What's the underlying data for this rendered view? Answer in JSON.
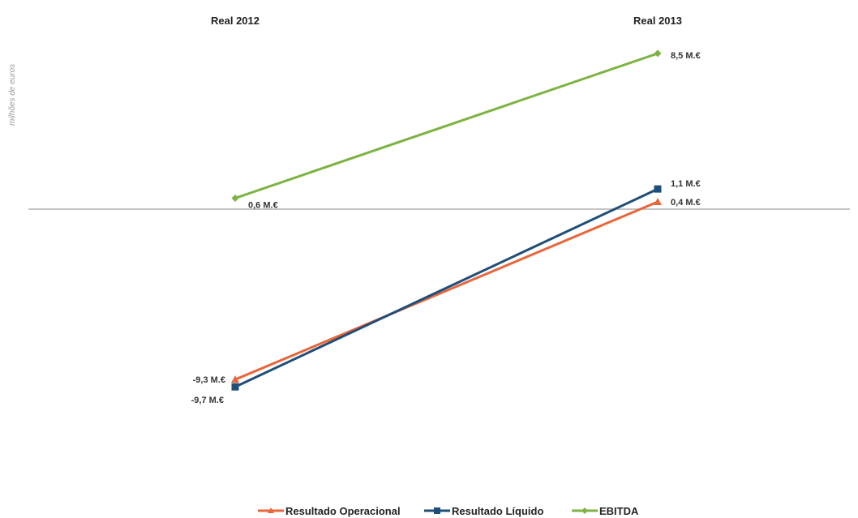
{
  "chart_data": {
    "type": "line",
    "categories": [
      "Real 2012",
      "Real 2013"
    ],
    "ylabel": "milhões de euros",
    "ylim": [
      -12,
      10
    ],
    "grid": false,
    "legend_position": "bottom",
    "series": [
      {
        "name": "Resultado Operacional",
        "color": "#e8663b",
        "marker": "triangle",
        "values": [
          -9.3,
          0.4
        ],
        "labels": [
          "-9,3 M.€",
          "0,4 M.€"
        ]
      },
      {
        "name": "Resultado Líquido",
        "color": "#1f4e79",
        "marker": "square",
        "values": [
          -9.7,
          1.1
        ],
        "labels": [
          "-9,7 M.€",
          "1,1 M.€"
        ]
      },
      {
        "name": "EBITDA",
        "color": "#7cb342",
        "marker": "diamond",
        "values": [
          0.6,
          8.5
        ],
        "labels": [
          "0,6 M.€",
          "8,5 M.€"
        ]
      }
    ]
  }
}
